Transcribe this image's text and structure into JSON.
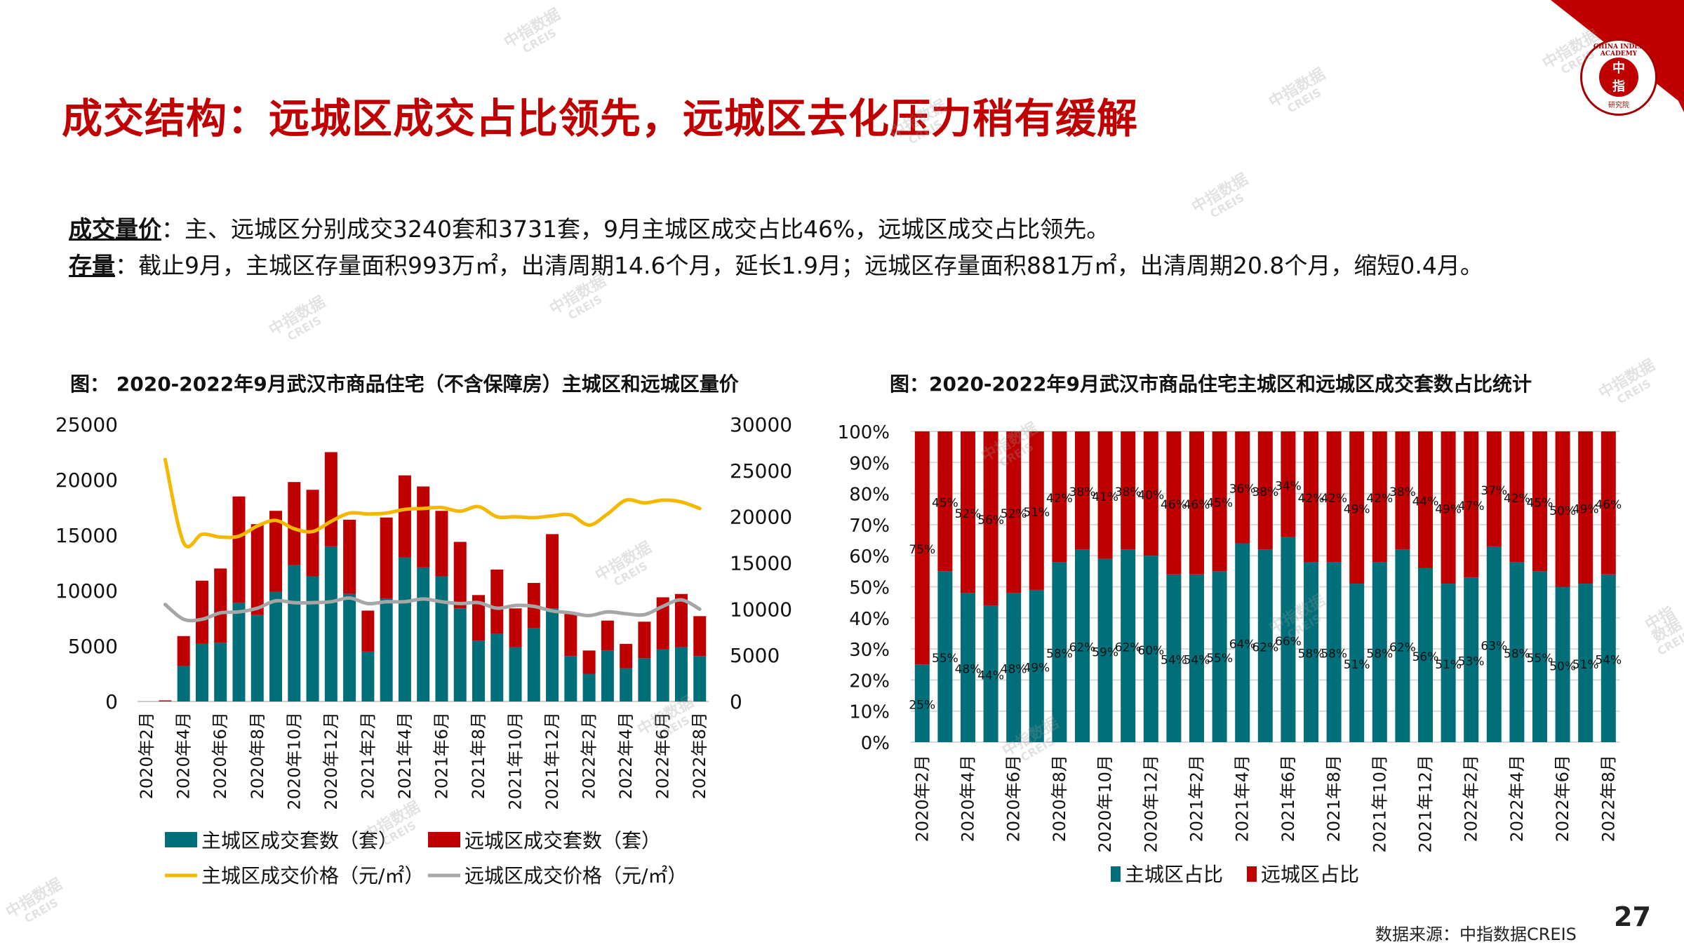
{
  "slide": {
    "title": "成交结构：远城区成交占比领先，远城区去化压力稍有缓解",
    "page_number": "27",
    "source": "数据来源：中指数据CREIS",
    "logo": {
      "center_top": "中",
      "center_bottom": "指",
      "ring_text": "CHINA INDEX ACADEMY",
      "bottom_text": "研究院"
    },
    "watermark": {
      "line1": "中指数据",
      "line2": "CREIS"
    },
    "paragraphs": [
      {
        "label": "成交量价",
        "text": "：主、远城区分别成交3240套和3731套，9月主城区成交占比46%，远城区成交占比领先。"
      },
      {
        "label": "存量",
        "text": "：截止9月，主城区存量面积993万㎡，出清周期14.6个月，延长1.9月；远城区存量面积881万㎡，出清周期20.8个月，缩短0.4月。"
      }
    ],
    "colors": {
      "accent": "#c00000",
      "teal": "#006f7a",
      "red": "#c00000",
      "yellow": "#f5b800",
      "gray": "#a6a6a6"
    }
  },
  "chart_data": [
    {
      "type": "bar+line",
      "title": "图： 2020-2022年9月武汉市商品住宅（不含保障房）主城区和远城区量价",
      "categories": [
        "2020年2月",
        "2020年3月",
        "2020年4月",
        "2020年5月",
        "2020年6月",
        "2020年7月",
        "2020年8月",
        "2020年9月",
        "2020年10月",
        "2020年11月",
        "2020年12月",
        "2021年1月",
        "2021年2月",
        "2021年3月",
        "2021年4月",
        "2021年5月",
        "2021年6月",
        "2021年7月",
        "2021年8月",
        "2021年9月",
        "2021年10月",
        "2021年11月",
        "2021年12月",
        "2022年1月",
        "2022年2月",
        "2022年3月",
        "2022年4月",
        "2022年5月",
        "2022年6月",
        "2022年7月",
        "2022年8月"
      ],
      "tick_labels": [
        "2020年2月",
        "2020年4月",
        "2020年6月",
        "2020年8月",
        "2020年10月",
        "2020年12月",
        "2021年2月",
        "2021年4月",
        "2021年6月",
        "2021年8月",
        "2021年10月",
        "2021年12月",
        "2022年2月",
        "2022年4月",
        "2022年6月",
        "2022年8月"
      ],
      "y_left": {
        "min": 0,
        "max": 25000,
        "ticks": [
          0,
          5000,
          10000,
          15000,
          20000,
          25000
        ]
      },
      "y_right": {
        "min": 0,
        "max": 30000,
        "ticks": [
          0,
          5000,
          10000,
          15000,
          20000,
          25000,
          30000
        ]
      },
      "series": [
        {
          "name": "主城区成交套数（套）",
          "kind": "bar",
          "axis": "left",
          "color": "#006f7a",
          "values": [
            null,
            20,
            3200,
            5200,
            5300,
            8900,
            7800,
            9900,
            12300,
            11300,
            14000,
            9700,
            4500,
            9300,
            13000,
            12100,
            11300,
            8400,
            5500,
            6100,
            4900,
            6600,
            8400,
            4100,
            2500,
            4600,
            3000,
            3900,
            4700,
            4900,
            4100
          ]
        },
        {
          "name": "远城区成交套数（套）",
          "kind": "bar",
          "axis": "left",
          "color": "#c00000",
          "values": [
            null,
            80,
            2700,
            5700,
            6700,
            9600,
            8200,
            7300,
            7500,
            7800,
            8500,
            6700,
            3700,
            7300,
            7400,
            7300,
            5900,
            6000,
            4100,
            5800,
            3500,
            4100,
            6700,
            3900,
            2100,
            2700,
            2200,
            3300,
            4700,
            4800,
            3600
          ]
        },
        {
          "name": "主城区成交价格（元/㎡）",
          "kind": "line",
          "axis": "right",
          "color": "#f5b800",
          "values": [
            null,
            26200,
            17200,
            18100,
            17800,
            17900,
            19000,
            19600,
            18700,
            18400,
            19500,
            20400,
            20300,
            20400,
            20800,
            20900,
            21000,
            20600,
            21100,
            20000,
            20000,
            19900,
            20100,
            20200,
            19100,
            20300,
            21800,
            21500,
            21800,
            21600,
            20900
          ]
        },
        {
          "name": "远城区成交价格（元/㎡）",
          "kind": "line",
          "axis": "right",
          "color": "#a6a6a6",
          "values": [
            null,
            10500,
            8900,
            8900,
            9600,
            9700,
            10100,
            10900,
            10700,
            10700,
            10800,
            11200,
            10600,
            10800,
            10800,
            11100,
            10800,
            10600,
            10700,
            10100,
            10400,
            10300,
            9800,
            9600,
            9300,
            9700,
            9500,
            9400,
            10300,
            11000,
            10000
          ]
        }
      ],
      "legend": {
        "position": "bottom",
        "entries": [
          "主城区成交套数（套）",
          "远城区成交套数（套）",
          "主城区成交价格（元/㎡）",
          "远城区成交价格（元/㎡）"
        ]
      }
    },
    {
      "type": "stacked-bar-100",
      "title": "图：2020-2022年9月武汉市商品住宅主城区和远城区成交套数占比统计",
      "categories": [
        "2020年2月",
        "2020年3月",
        "2020年4月",
        "2020年5月",
        "2020年6月",
        "2020年7月",
        "2020年8月",
        "2020年9月",
        "2020年10月",
        "2020年11月",
        "2020年12月",
        "2021年1月",
        "2021年2月",
        "2021年3月",
        "2021年4月",
        "2021年5月",
        "2021年6月",
        "2021年7月",
        "2021年8月",
        "2021年9月",
        "2021年10月",
        "2021年11月",
        "2021年12月",
        "2022年1月",
        "2022年2月",
        "2022年3月",
        "2022年4月",
        "2022年5月",
        "2022年6月",
        "2022年7月",
        "2022年8月"
      ],
      "tick_labels": [
        "2020年2月",
        "2020年4月",
        "2020年6月",
        "2020年8月",
        "2020年10月",
        "2020年12月",
        "2021年2月",
        "2021年4月",
        "2021年6月",
        "2021年8月",
        "2021年10月",
        "2021年12月",
        "2022年2月",
        "2022年4月",
        "2022年6月",
        "2022年8月"
      ],
      "y": {
        "min": 0,
        "max": 100,
        "ticks": [
          "0%",
          "10%",
          "20%",
          "30%",
          "40%",
          "50%",
          "60%",
          "70%",
          "80%",
          "90%",
          "100%"
        ]
      },
      "series": [
        {
          "name": "主城区占比",
          "color": "#006f7a",
          "values": [
            25,
            55,
            48,
            44,
            48,
            49,
            58,
            62,
            59,
            62,
            60,
            54,
            54,
            55,
            64,
            62,
            66,
            58,
            58,
            51,
            58,
            62,
            56,
            51,
            53,
            63,
            58,
            55,
            50,
            51,
            54
          ]
        },
        {
          "name": "远城区占比",
          "color": "#c00000",
          "values": [
            75,
            45,
            52,
            56,
            52,
            51,
            42,
            38,
            41,
            38,
            40,
            46,
            46,
            45,
            36,
            38,
            34,
            42,
            42,
            49,
            42,
            38,
            44,
            49,
            47,
            37,
            42,
            45,
            50,
            49,
            46
          ]
        }
      ],
      "legend": {
        "position": "bottom",
        "entries": [
          "主城区占比",
          "远城区占比"
        ]
      }
    }
  ]
}
